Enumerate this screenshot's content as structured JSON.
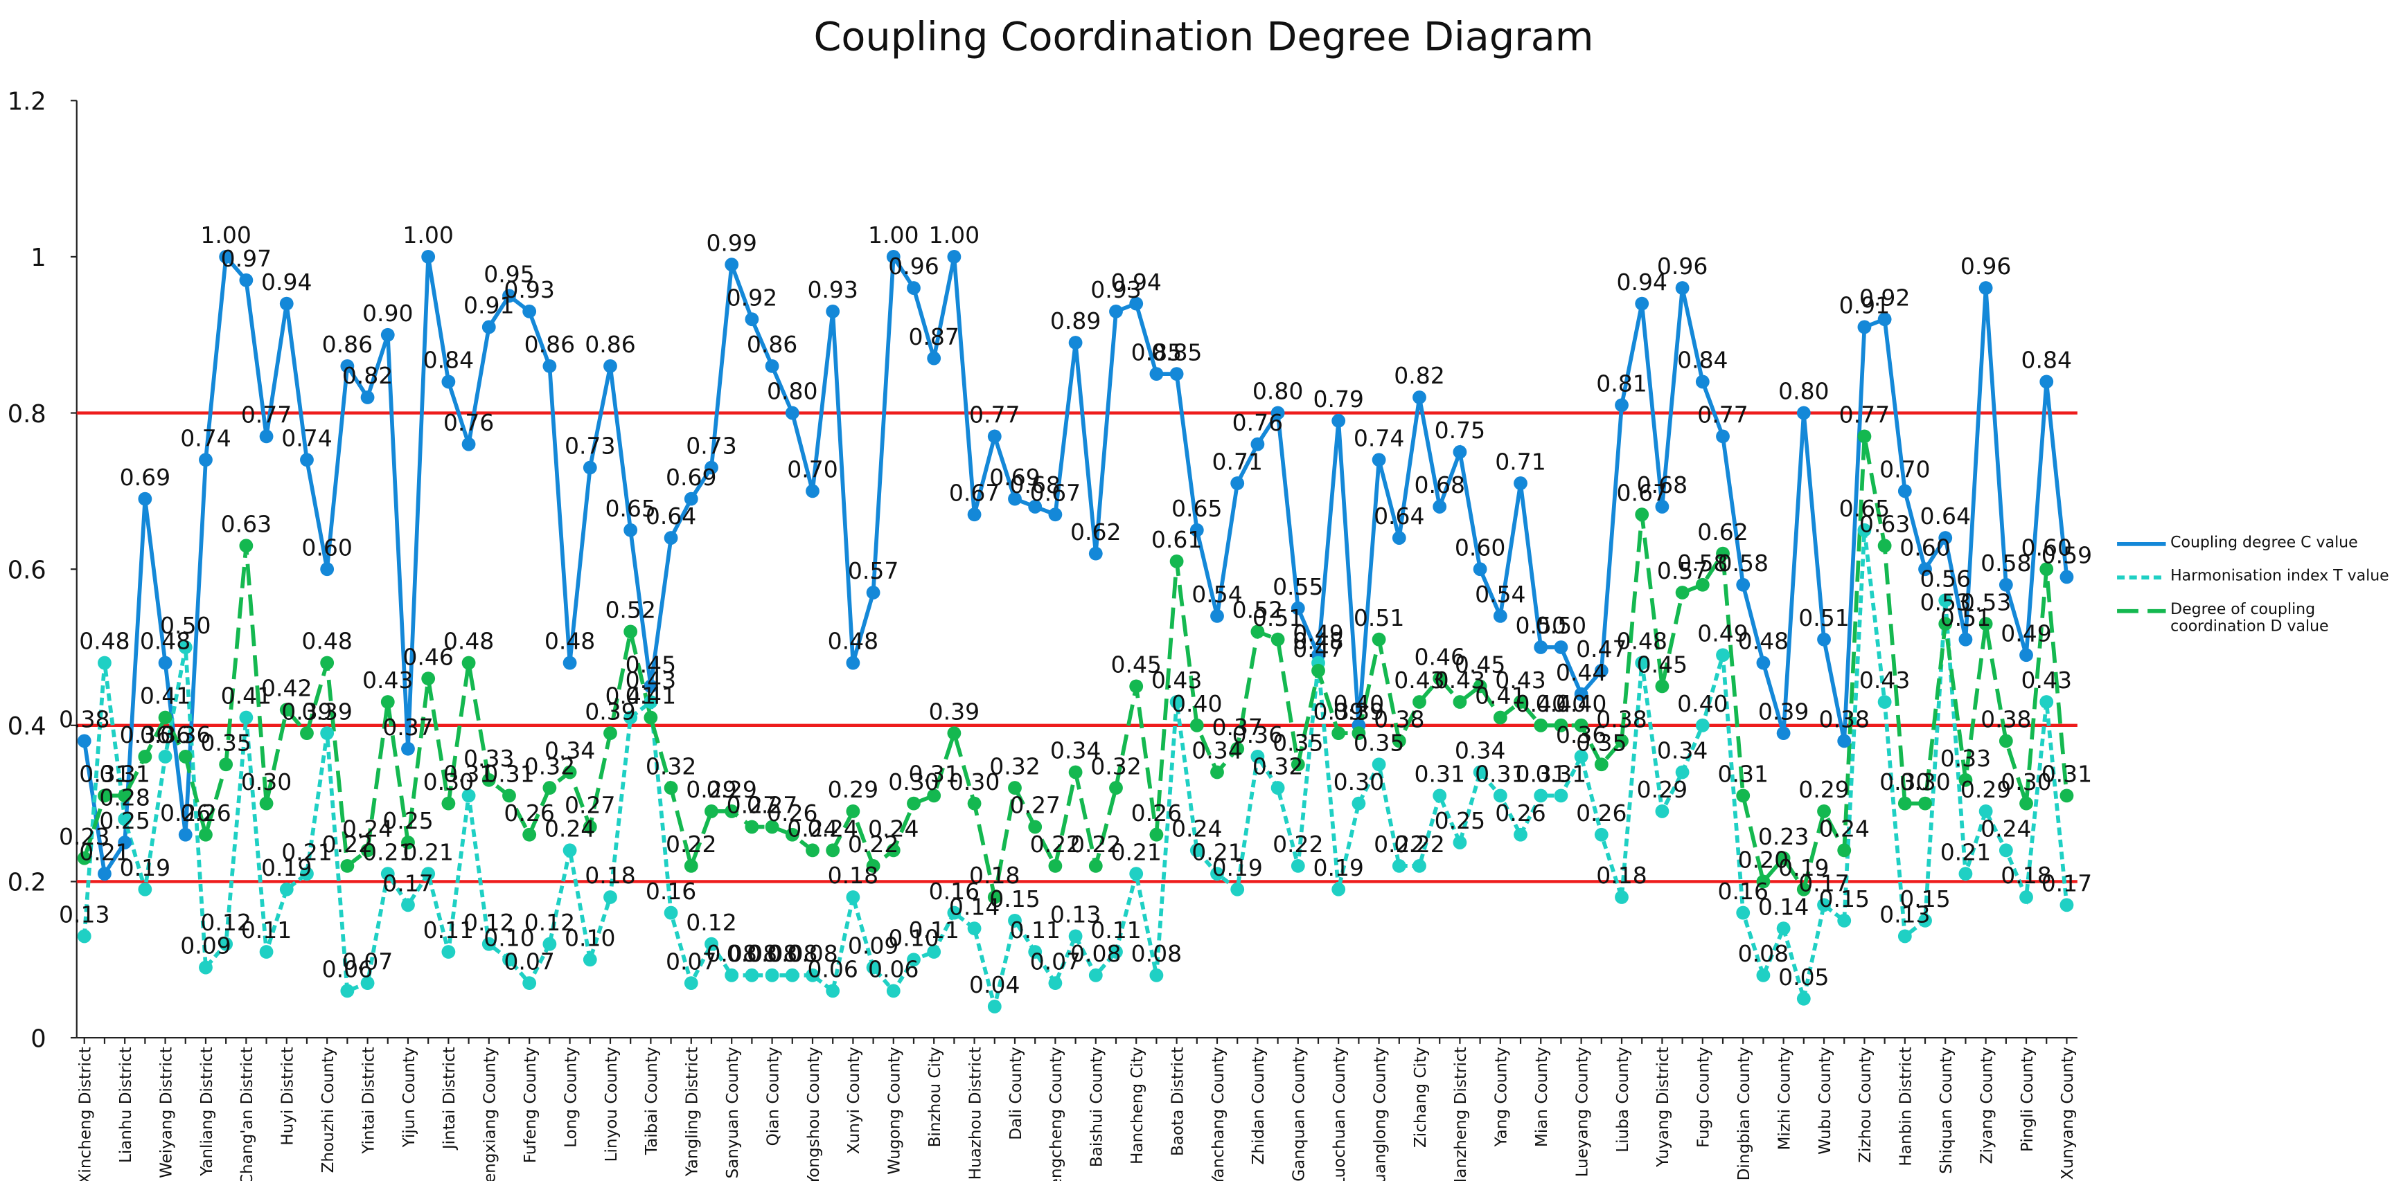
{
  "chart_data": {
    "type": "line",
    "title": "Coupling Coordination Degree Diagram",
    "categories": [
      "Xincheng District",
      null,
      "Lianhu District",
      null,
      "Weiyang District",
      null,
      "Yanliang District",
      null,
      "Chang'an District",
      null,
      "Huyi District",
      null,
      "Zhouzhi County",
      null,
      "Yintai District",
      null,
      "Yijun County",
      null,
      "Jintai District",
      null,
      "Fengxiang County",
      null,
      "Fufeng County",
      null,
      "Long County",
      null,
      "Linyou County",
      null,
      "Taibai County",
      null,
      "Yangling District",
      null,
      "Sanyuan County",
      null,
      "Qian County",
      null,
      "Yongshou County",
      null,
      "Xunyi County",
      null,
      "Wugong County",
      null,
      "Binzhou City",
      null,
      "Huazhou District",
      null,
      "Dali County",
      null,
      "Chengcheng County",
      null,
      "Baishui County",
      null,
      "Hancheng City",
      null,
      "Baota District",
      null,
      "Yanchang County",
      null,
      "Zhidan County",
      null,
      "Ganquan County",
      null,
      "Luochuan County",
      null,
      "Huanglong County",
      null,
      "Zichang City",
      null,
      "Nanzheng District",
      null,
      "Yang County",
      null,
      "Mian County",
      null,
      "Lueyang County",
      null,
      "Liuba County",
      null,
      "Yuyang District",
      null,
      "Fugu County",
      null,
      "Dingbian County",
      null,
      "Mizhi County",
      null,
      "Wubu County",
      null,
      "Zizhou County",
      null,
      "Hanbin District",
      null,
      "Shiquan County",
      null,
      "Ziyang County",
      null,
      "Pingli County",
      null,
      "Xunyang County"
    ],
    "series": [
      {
        "name": "Coupling degree C value",
        "color": "#1488d8",
        "dash": "solid",
        "values": [
          0.38,
          0.21,
          0.25,
          0.69,
          0.48,
          0.26,
          0.74,
          1,
          0.97,
          0.77,
          0.94,
          0.74,
          0.6,
          0.86,
          0.82,
          0.9,
          0.37,
          1,
          0.84,
          0.76,
          0.91,
          0.95,
          0.93,
          0.86,
          0.48,
          0.73,
          0.86,
          0.65,
          0.45,
          0.64,
          0.69,
          0.73,
          0.99,
          0.92,
          0.86,
          0.8,
          0.7,
          0.93,
          0.48,
          0.57,
          1,
          0.96,
          0.87,
          1,
          0.67,
          0.77,
          0.69,
          0.68,
          0.67,
          0.89,
          0.62,
          0.93,
          0.94,
          0.85,
          0.85,
          0.65,
          0.54,
          0.71,
          0.76,
          0.8,
          0.55,
          0.49,
          0.79,
          0.4,
          0.74,
          0.64,
          0.82,
          0.68,
          0.75,
          0.6,
          0.54,
          0.71,
          0.5,
          0.5,
          0.44,
          0.47,
          0.81,
          0.94,
          0.68,
          0.96,
          0.84,
          0.77,
          0.58,
          0.48,
          0.39,
          0.8,
          0.51,
          0.38,
          0.91,
          0.92,
          0.7,
          0.6,
          0.64,
          0.51,
          0.96,
          0.58,
          0.49,
          0.84,
          0.59
        ],
        "value_labels": [
          "0.38",
          "0.21",
          "0.25",
          "0.69",
          "0.48",
          "0.26",
          "0.74",
          "1.00",
          "0.97",
          "0.77",
          "0.94",
          "0.74",
          "0.60",
          "0.86",
          "0.82",
          "0.90",
          "0.37",
          "1.00",
          "0.84",
          "0.76",
          "0.91",
          "0.95",
          "0.93",
          "0.86",
          "0.48",
          "0.73",
          "0.86",
          "0.65",
          "0.45",
          "0.64",
          "0.69",
          "0.73",
          "0.99",
          "0.92",
          "0.86",
          "0.80",
          "0.70",
          "0.93",
          "0.48",
          "0.57",
          "1.00",
          "0.96",
          "0.87",
          "1.00",
          "0.67",
          "0.77",
          "0.69",
          "0.68",
          "0.67",
          "0.89",
          "0.62",
          "0.93",
          "0.94",
          "0.85",
          "0.85",
          "0.65",
          "0.54",
          "0.71",
          "0.76",
          "0.80",
          "0.55",
          "0.49",
          "0.79",
          "0.40",
          "0.74",
          "0.64",
          "0.82",
          "0.68",
          "0.75",
          "0.60",
          "0.54",
          "0.71",
          "0.50",
          "0.50",
          "0.44",
          "0.47",
          "0.81",
          "0.94",
          "0.68",
          "0.96",
          "0.84",
          "0.77",
          "0.58",
          "0.48",
          "0.39",
          "0.80",
          "0.51",
          "0.38",
          "0.91",
          "0.92",
          "0.70",
          "0.60",
          "0.64",
          "0.51",
          "0.96",
          "0.58",
          "0.49",
          "0.84",
          "0.59"
        ]
      },
      {
        "name": "Harmonisation index T value",
        "color": "#1fd0c4",
        "dash": "short",
        "values": [
          0.13,
          0.48,
          0.28,
          0.19,
          0.36,
          0.5,
          0.09,
          0.12,
          0.41,
          0.11,
          0.19,
          0.21,
          0.39,
          0.06,
          0.07,
          0.21,
          0.17,
          0.21,
          0.11,
          0.31,
          0.12,
          0.1,
          0.07,
          0.12,
          0.24,
          0.1,
          0.18,
          0.41,
          0.43,
          0.16,
          0.07,
          0.12,
          0.08,
          0.08,
          0.08,
          0.08,
          0.08,
          0.06,
          0.18,
          0.09,
          0.06,
          0.1,
          0.11,
          0.16,
          0.14,
          0.04,
          0.15,
          0.11,
          0.07,
          0.13,
          0.08,
          0.11,
          0.21,
          0.08,
          0.43,
          0.24,
          0.21,
          0.19,
          0.36,
          0.32,
          0.22,
          0.48,
          0.19,
          0.3,
          0.35,
          0.22,
          0.22,
          0.31,
          0.25,
          0.34,
          0.31,
          0.26,
          0.31,
          0.31,
          0.36,
          0.26,
          0.18,
          0.48,
          0.29,
          0.34,
          0.4,
          0.49,
          0.16,
          0.08,
          0.14,
          0.05,
          0.17,
          0.15,
          0.65,
          0.43,
          0.13,
          0.15,
          0.56,
          0.21,
          0.29,
          0.24,
          0.18,
          0.43,
          0.17
        ],
        "value_labels": [
          "0.13",
          "0.48",
          "0.28",
          "0.19",
          "0.36",
          "0.50",
          "0.09",
          "0.12",
          "0.41",
          "0.11",
          "0.19",
          "0.21",
          "0.39",
          "0.06",
          "0.07",
          "0.21",
          "0.17",
          "0.21",
          "0.11",
          "0.31",
          "0.12",
          "0.10",
          "0.07",
          "0.12",
          "0.24",
          "0.10",
          "0.18",
          "0.41",
          "0.43",
          "0.16",
          "0.07",
          "0.12",
          "0.08",
          "0.08",
          "0.08",
          "0.08",
          "0.08",
          "0.06",
          "0.18",
          "0.09",
          "0.06",
          "0.10",
          "0.11",
          "0.16",
          "0.14",
          "0.04",
          "0.15",
          "0.11",
          "0.07",
          "0.13",
          "0.08",
          "0.11",
          "0.21",
          "0.08",
          "0.43",
          "0.24",
          "0.21",
          "0.19",
          "0.36",
          "0.32",
          "0.22",
          "0.48",
          "0.19",
          "0.30",
          "0.35",
          "0.22",
          "0.22",
          "0.31",
          "0.25",
          "0.34",
          "0.31",
          "0.26",
          "0.31",
          "0.31",
          "0.36",
          "0.26",
          "0.18",
          "0.48",
          "0.29",
          "0.34",
          "0.40",
          "0.49",
          "0.16",
          "0.08",
          "0.14",
          "0.05",
          "0.17",
          "0.15",
          "0.65",
          "0.43",
          "0.13",
          "0.15",
          "0.56",
          "0.21",
          "0.29",
          "0.24",
          "0.18",
          "0.43",
          "0.17"
        ]
      },
      {
        "name": "Degree of coupling coordination D value",
        "color": "#14b850",
        "dash": "long",
        "values": [
          0.23,
          0.31,
          0.31,
          0.36,
          0.41,
          0.36,
          0.26,
          0.35,
          0.63,
          0.3,
          0.42,
          0.39,
          0.48,
          0.22,
          0.24,
          0.43,
          0.25,
          0.46,
          0.3,
          0.48,
          0.33,
          0.31,
          0.26,
          0.32,
          0.34,
          0.27,
          0.39,
          0.52,
          0.41,
          0.32,
          0.22,
          0.29,
          0.29,
          0.27,
          0.27,
          0.26,
          0.24,
          0.24,
          0.29,
          0.22,
          0.24,
          0.3,
          0.31,
          0.39,
          0.3,
          0.18,
          0.32,
          0.27,
          0.22,
          0.34,
          0.22,
          0.32,
          0.45,
          0.26,
          0.61,
          0.4,
          0.34,
          0.37,
          0.52,
          0.51,
          0.35,
          0.47,
          0.39,
          0.39,
          0.51,
          0.38,
          0.43,
          0.46,
          0.43,
          0.45,
          0.41,
          0.43,
          0.4,
          0.4,
          0.4,
          0.35,
          0.38,
          0.67,
          0.45,
          0.57,
          0.58,
          0.62,
          0.31,
          0.2,
          0.23,
          0.19,
          0.29,
          0.24,
          0.77,
          0.63,
          0.3,
          0.3,
          0.53,
          0.33,
          0.53,
          0.38,
          0.3,
          0.6,
          0.31
        ],
        "value_labels": [
          "0.23",
          "0.31",
          "0.31",
          "0.36",
          "0.41",
          "0.36",
          "0.26",
          "0.35",
          "0.63",
          "0.30",
          "0.42",
          "0.39",
          "0.48",
          "0.22",
          "0.24",
          "0.43",
          "0.25",
          "0.46",
          "0.30",
          "0.48",
          "0.33",
          "0.31",
          "0.26",
          "0.32",
          "0.34",
          "0.27",
          "0.39",
          "0.52",
          "0.41",
          "0.32",
          "0.22",
          "0.29",
          "0.29",
          "0.27",
          "0.27",
          "0.26",
          "0.24",
          "0.24",
          "0.29",
          "0.22",
          "0.24",
          "0.30",
          "0.31",
          "0.39",
          "0.30",
          "0.18",
          "0.32",
          "0.27",
          "0.22",
          "0.34",
          "0.22",
          "0.32",
          "0.45",
          "0.26",
          "0.61",
          "0.40",
          "0.34",
          "0.37",
          "0.52",
          "0.51",
          "0.35",
          "0.47",
          "0.39",
          "0.39",
          "0.51",
          "0.38",
          "0.43",
          "0.46",
          "0.43",
          "0.45",
          "0.41",
          "0.43",
          "0.40",
          "0.40",
          "0.40",
          "0.35",
          "0.38",
          "0.67",
          "0.45",
          "0.57",
          "0.58",
          "0.62",
          "0.31",
          "0.20",
          "0.23",
          "0.19",
          "0.29",
          "0.24",
          "0.77",
          "0.63",
          "0.30",
          "0.30",
          "0.53",
          "0.33",
          "0.53",
          "0.38",
          "0.30",
          "0.60",
          "0.31"
        ]
      }
    ],
    "ylim": [
      0,
      1.2
    ],
    "yticks": [
      0,
      0.2,
      0.4,
      0.6,
      0.8,
      1,
      1.2
    ],
    "reference_lines": [
      0.2,
      0.4,
      0.8
    ],
    "reference_color": "#ee1c1c",
    "grid": false,
    "legend": "right"
  }
}
